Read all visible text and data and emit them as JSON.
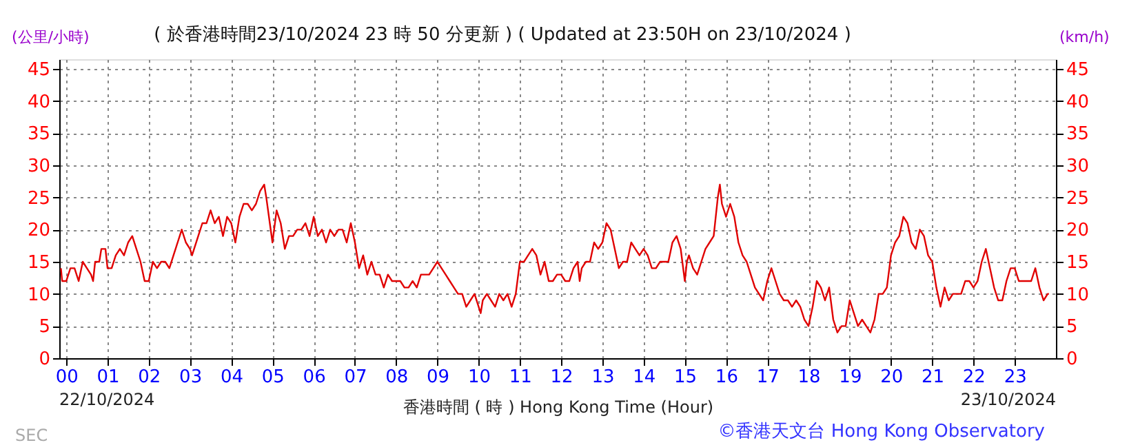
{
  "chart_data": {
    "type": "line",
    "title": "( 於香港時間23/10/2024 23 時 50 分更新 ) ( Updated at 23:50H on 23/10/2024 )",
    "xlabel": "香港時間 ( 時 )  Hong Kong Time (Hour)",
    "ylabel": "(公里/小時)",
    "y2label": "(km/h)",
    "annotations": [
      "22/10/2024",
      "23/10/2024",
      "©香港天文台 Hong Kong Observatory",
      "SEC"
    ],
    "xlim": [
      -0.17,
      24
    ],
    "xticks": [
      {
        "value": 0,
        "label": "00"
      },
      {
        "value": 1,
        "label": "01"
      },
      {
        "value": 2,
        "label": "02"
      },
      {
        "value": 3,
        "label": "03"
      },
      {
        "value": 4,
        "label": "04"
      },
      {
        "value": 5,
        "label": "05"
      },
      {
        "value": 6,
        "label": "06"
      },
      {
        "value": 7,
        "label": "07"
      },
      {
        "value": 8,
        "label": "08"
      },
      {
        "value": 9,
        "label": "09"
      },
      {
        "value": 10,
        "label": "10"
      },
      {
        "value": 11,
        "label": "11"
      },
      {
        "value": 12,
        "label": "12"
      },
      {
        "value": 13,
        "label": "13"
      },
      {
        "value": 14,
        "label": "14"
      },
      {
        "value": 15,
        "label": "15"
      },
      {
        "value": 16,
        "label": "16"
      },
      {
        "value": 17,
        "label": "17"
      },
      {
        "value": 18,
        "label": "18"
      },
      {
        "value": 19,
        "label": "19"
      },
      {
        "value": 20,
        "label": "20"
      },
      {
        "value": 21,
        "label": "21"
      },
      {
        "value": 22,
        "label": "22"
      },
      {
        "value": 23,
        "label": "23"
      }
    ],
    "ylim": [
      0,
      46.5
    ],
    "yticks": [
      0,
      5,
      10,
      15,
      20,
      25,
      30,
      35,
      40,
      45
    ],
    "y2lim": [
      0,
      46.5
    ],
    "y2ticks": [
      0,
      5,
      10,
      15,
      20,
      25,
      30,
      35,
      40,
      45
    ],
    "grid": true,
    "legend": false,
    "marker": "none",
    "line_style": "solid",
    "series": [
      {
        "color": "#e00000",
        "x": [
          -0.13,
          -0.1,
          0.0,
          0.1,
          0.2,
          0.3,
          0.4,
          0.5,
          0.6,
          0.65,
          0.7,
          0.8,
          0.85,
          0.95,
          1.0,
          1.1,
          1.2,
          1.3,
          1.4,
          1.5,
          1.6,
          1.7,
          1.8,
          1.9,
          2.0,
          2.1,
          2.2,
          2.3,
          2.4,
          2.5,
          2.6,
          2.7,
          2.8,
          2.9,
          3.0,
          3.05,
          3.2,
          3.3,
          3.4,
          3.5,
          3.6,
          3.7,
          3.8,
          3.9,
          4.0,
          4.1,
          4.2,
          4.3,
          4.4,
          4.5,
          4.6,
          4.7,
          4.8,
          4.85,
          5.0,
          5.1,
          5.2,
          5.3,
          5.4,
          5.5,
          5.6,
          5.7,
          5.8,
          5.9,
          6.0,
          6.1,
          6.2,
          6.3,
          6.4,
          6.5,
          6.6,
          6.7,
          6.8,
          6.9,
          7.0,
          7.05,
          7.1,
          7.2,
          7.3,
          7.4,
          7.5,
          7.6,
          7.7,
          7.8,
          7.9,
          8.0,
          8.1,
          8.2,
          8.3,
          8.4,
          8.5,
          8.6,
          8.7,
          8.8,
          8.9,
          9.0,
          9.1,
          9.2,
          9.3,
          9.4,
          9.5,
          9.6,
          9.7,
          9.8,
          9.9,
          10.0,
          10.05,
          10.1,
          10.2,
          10.3,
          10.4,
          10.5,
          10.6,
          10.7,
          10.8,
          10.9,
          11.0,
          11.1,
          11.2,
          11.3,
          11.4,
          11.5,
          11.6,
          11.7,
          11.8,
          11.9,
          12.0,
          12.1,
          12.2,
          12.3,
          12.4,
          12.45,
          12.5,
          12.6,
          12.7,
          12.8,
          12.9,
          13.0,
          13.1,
          13.2,
          13.3,
          13.4,
          13.5,
          13.6,
          13.7,
          13.8,
          13.9,
          14.0,
          14.1,
          14.2,
          14.3,
          14.4,
          14.5,
          14.6,
          14.7,
          14.8,
          14.9,
          15.0,
          15.05,
          15.1,
          15.2,
          15.3,
          15.4,
          15.5,
          15.6,
          15.7,
          15.8,
          15.85,
          15.9,
          16.0,
          16.1,
          16.2,
          16.3,
          16.4,
          16.5,
          16.6,
          16.7,
          16.8,
          16.9,
          17.0,
          17.1,
          17.2,
          17.3,
          17.4,
          17.5,
          17.6,
          17.7,
          17.8,
          17.9,
          18.0,
          18.1,
          18.2,
          18.3,
          18.4,
          18.5,
          18.6,
          18.7,
          18.8,
          18.9,
          19.0,
          19.1,
          19.2,
          19.3,
          19.4,
          19.5,
          19.6,
          19.7,
          19.8,
          19.9,
          20.0,
          20.1,
          20.2,
          20.3,
          20.4,
          20.5,
          20.6,
          20.7,
          20.8,
          20.9,
          21.0,
          21.1,
          21.2,
          21.3,
          21.4,
          21.5,
          21.6,
          21.7,
          21.8,
          21.9,
          22.0,
          22.1,
          22.2,
          22.3,
          22.4,
          22.5,
          22.6,
          22.7,
          22.8,
          22.9,
          23.0,
          23.1,
          23.2,
          23.3,
          23.4,
          23.5,
          23.6,
          23.7,
          23.8,
          23.83
        ],
        "values": [
          14,
          12,
          12,
          14,
          14,
          12,
          15,
          14,
          13,
          12,
          15,
          15,
          17,
          17,
          14,
          14,
          16,
          17,
          16,
          18,
          19,
          17,
          15,
          12,
          12,
          15,
          14,
          15,
          15,
          14,
          16,
          18,
          20,
          18,
          17,
          16,
          19,
          21,
          21,
          23,
          21,
          22,
          19,
          22,
          21,
          18,
          22,
          24,
          24,
          23,
          24,
          26,
          27,
          25,
          18,
          23,
          21,
          17,
          19,
          19,
          20,
          20,
          21,
          19,
          22,
          19,
          20,
          18,
          20,
          19,
          20,
          20,
          18,
          21,
          18,
          16,
          14,
          16,
          13,
          15,
          13,
          13,
          11,
          13,
          12,
          12,
          12,
          11,
          11,
          12,
          11,
          13,
          13,
          13,
          14,
          15,
          14,
          13,
          12,
          11,
          10,
          10,
          8,
          9,
          10,
          8,
          7,
          9,
          10,
          9,
          8,
          10,
          9,
          10,
          8,
          10,
          15,
          15,
          16,
          17,
          16,
          13,
          15,
          12,
          12,
          13,
          13,
          12,
          12,
          14,
          15,
          12,
          14,
          15,
          15,
          18,
          17,
          18,
          21,
          20,
          17,
          14,
          15,
          15,
          18,
          17,
          16,
          17,
          16,
          14,
          14,
          15,
          15,
          15,
          18,
          19,
          17,
          12,
          15,
          16,
          14,
          13,
          15,
          17,
          18,
          19,
          25,
          27,
          24,
          22,
          24,
          22,
          18,
          16,
          15,
          13,
          11,
          10,
          9,
          12,
          14,
          12,
          10,
          9,
          9,
          8,
          9,
          8,
          6,
          5,
          8,
          12,
          11,
          9,
          11,
          6,
          4,
          5,
          5,
          9,
          7,
          5,
          6,
          5,
          4,
          6,
          10,
          10,
          11,
          16,
          18,
          19,
          22,
          21,
          18,
          17,
          20,
          19,
          16,
          15,
          11,
          8,
          11,
          9,
          10,
          10,
          10,
          12,
          12,
          11,
          12,
          15,
          17,
          14,
          11,
          9,
          9,
          12,
          14,
          14,
          12,
          12,
          12,
          12,
          14,
          11,
          9,
          10,
          10
        ]
      }
    ]
  }
}
